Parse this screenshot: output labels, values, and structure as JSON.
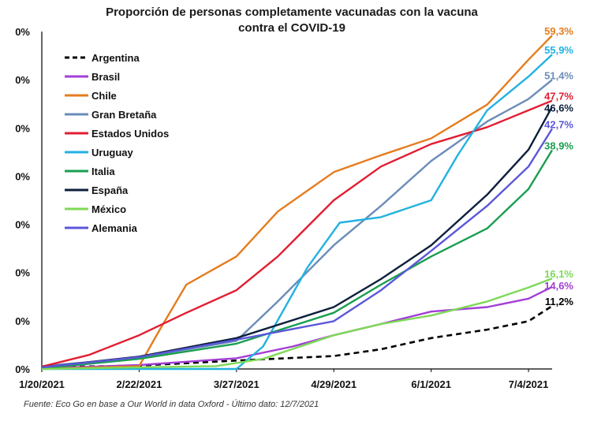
{
  "chart_data": {
    "type": "line",
    "title": [
      "Proporción de personas completamente vacunadas con la vacuna",
      "contra el COVID-19"
    ],
    "source": "Fuente: Eco Go en base a Our World in data Oxford - Último dato: 12/7/2021",
    "x_range": [
      "1/20/2021",
      "7/12/2021"
    ],
    "x_ticks": [
      "1/20/2021",
      "2/22/2021",
      "3/27/2021",
      "4/29/2021",
      "6/1/2021",
      "7/4/2021"
    ],
    "y_ticks": [
      "0%",
      "0%",
      "0%",
      "0%",
      "0%",
      "0%",
      "0%"
    ],
    "ylim": [
      0,
      60
    ],
    "grid": false,
    "legend_position": "top-left",
    "series": [
      {
        "name": "Argentina",
        "color": "#000000",
        "dash": true,
        "end_label": "11,2%",
        "points": [
          [
            "1/20/2021",
            0.3
          ],
          [
            "2/22/2021",
            0.6
          ],
          [
            "3/27/2021",
            1.5
          ],
          [
            "4/29/2021",
            2.3
          ],
          [
            "5/15/2021",
            3.5
          ],
          [
            "6/1/2021",
            5.5
          ],
          [
            "6/20/2021",
            7
          ],
          [
            "7/4/2021",
            8.5
          ],
          [
            "7/12/2021",
            11.2
          ]
        ]
      },
      {
        "name": "Brasil",
        "color": "#a23fd6",
        "dash": false,
        "end_label": "14,6%",
        "points": [
          [
            "1/20/2021",
            0.1
          ],
          [
            "2/22/2021",
            0.7
          ],
          [
            "3/27/2021",
            1.9
          ],
          [
            "4/15/2021",
            4
          ],
          [
            "4/29/2021",
            6
          ],
          [
            "5/15/2021",
            8
          ],
          [
            "6/1/2021",
            10.2
          ],
          [
            "6/20/2021",
            11
          ],
          [
            "7/4/2021",
            12.5
          ],
          [
            "7/12/2021",
            14.6
          ]
        ]
      },
      {
        "name": "Chile",
        "color": "#e57c1e",
        "dash": false,
        "end_label": "59,3%",
        "points": [
          [
            "1/20/2021",
            0
          ],
          [
            "2/22/2021",
            0.5
          ],
          [
            "3/1/2021",
            7
          ],
          [
            "3/10/2021",
            15
          ],
          [
            "3/27/2021",
            20
          ],
          [
            "4/10/2021",
            28
          ],
          [
            "4/29/2021",
            35
          ],
          [
            "5/15/2021",
            38
          ],
          [
            "6/1/2021",
            41
          ],
          [
            "6/20/2021",
            47
          ],
          [
            "7/4/2021",
            55
          ],
          [
            "7/12/2021",
            59.3
          ]
        ]
      },
      {
        "name": "Gran Bretaña",
        "color": "#6b8cb8",
        "dash": false,
        "end_label": "51,4%",
        "points": [
          [
            "1/20/2021",
            0.5
          ],
          [
            "2/22/2021",
            2
          ],
          [
            "3/27/2021",
            5
          ],
          [
            "4/10/2021",
            12
          ],
          [
            "4/29/2021",
            22
          ],
          [
            "5/15/2021",
            29
          ],
          [
            "6/1/2021",
            37
          ],
          [
            "6/20/2021",
            44
          ],
          [
            "7/4/2021",
            48
          ],
          [
            "7/12/2021",
            51.4
          ]
        ]
      },
      {
        "name": "Estados Unidos",
        "color": "#e21e32",
        "dash": false,
        "end_label": "47,7%",
        "points": [
          [
            "1/20/2021",
            0.4
          ],
          [
            "2/5/2021",
            2.5
          ],
          [
            "2/22/2021",
            6
          ],
          [
            "3/10/2021",
            10
          ],
          [
            "3/27/2021",
            14
          ],
          [
            "4/10/2021",
            20
          ],
          [
            "4/29/2021",
            30
          ],
          [
            "5/15/2021",
            36
          ],
          [
            "6/1/2021",
            40
          ],
          [
            "6/20/2021",
            43
          ],
          [
            "7/4/2021",
            46
          ],
          [
            "7/12/2021",
            47.7
          ]
        ]
      },
      {
        "name": "Uruguay",
        "color": "#22b2e0",
        "dash": false,
        "end_label": "55,9%",
        "points": [
          [
            "1/20/2021",
            0
          ],
          [
            "3/27/2021",
            0
          ],
          [
            "4/5/2021",
            4
          ],
          [
            "4/20/2021",
            18
          ],
          [
            "5/1/2021",
            26
          ],
          [
            "5/15/2021",
            27
          ],
          [
            "6/1/2021",
            30
          ],
          [
            "6/10/2021",
            38
          ],
          [
            "6/20/2021",
            46
          ],
          [
            "7/4/2021",
            52
          ],
          [
            "7/12/2021",
            55.9
          ]
        ]
      },
      {
        "name": "Italia",
        "color": "#1a9e4f",
        "dash": false,
        "end_label": "38,9%",
        "points": [
          [
            "1/20/2021",
            0.1
          ],
          [
            "2/22/2021",
            1.8
          ],
          [
            "3/27/2021",
            4.5
          ],
          [
            "4/29/2021",
            10
          ],
          [
            "5/15/2021",
            15
          ],
          [
            "6/1/2021",
            20
          ],
          [
            "6/20/2021",
            25
          ],
          [
            "7/4/2021",
            32
          ],
          [
            "7/12/2021",
            38.9
          ]
        ]
      },
      {
        "name": "España",
        "color": "#0d1f3c",
        "dash": false,
        "end_label": "46,6%",
        "points": [
          [
            "1/20/2021",
            0.3
          ],
          [
            "2/22/2021",
            2.2
          ],
          [
            "3/27/2021",
            5.5
          ],
          [
            "4/29/2021",
            11
          ],
          [
            "5/15/2021",
            16
          ],
          [
            "6/1/2021",
            22
          ],
          [
            "6/20/2021",
            31
          ],
          [
            "7/4/2021",
            39
          ],
          [
            "7/12/2021",
            46.6
          ]
        ]
      },
      {
        "name": "México",
        "color": "#7ed957",
        "dash": false,
        "end_label": "16,1%",
        "points": [
          [
            "1/20/2021",
            0
          ],
          [
            "3/20/2021",
            0.5
          ],
          [
            "4/5/2021",
            1.8
          ],
          [
            "4/29/2021",
            6
          ],
          [
            "5/15/2021",
            8
          ],
          [
            "6/1/2021",
            9.5
          ],
          [
            "6/20/2021",
            12
          ],
          [
            "7/4/2021",
            14.5
          ],
          [
            "7/12/2021",
            16.1
          ]
        ]
      },
      {
        "name": "Alemania",
        "color": "#5b57d9",
        "dash": false,
        "end_label": "42,7%",
        "points": [
          [
            "1/20/2021",
            0.3
          ],
          [
            "2/22/2021",
            2.1
          ],
          [
            "3/27/2021",
            5.2
          ],
          [
            "4/29/2021",
            8.5
          ],
          [
            "5/15/2021",
            14
          ],
          [
            "6/1/2021",
            21
          ],
          [
            "6/20/2021",
            29
          ],
          [
            "7/4/2021",
            36
          ],
          [
            "7/12/2021",
            42.7
          ]
        ]
      }
    ]
  }
}
